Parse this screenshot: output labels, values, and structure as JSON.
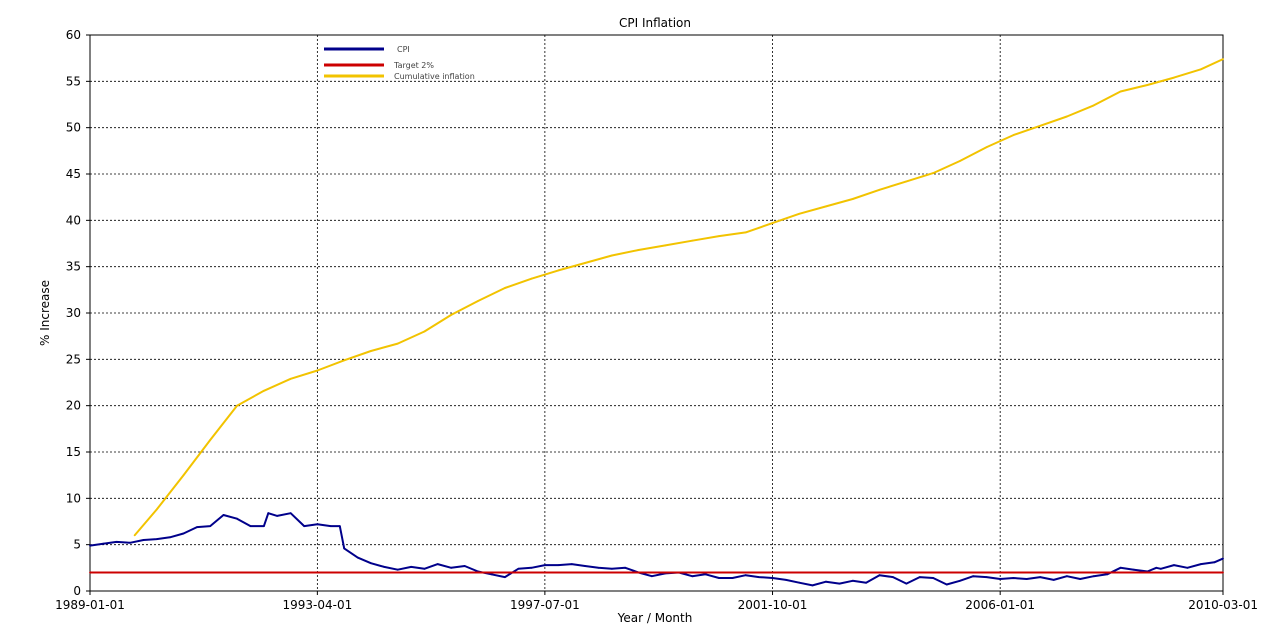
{
  "chart_data": {
    "type": "line",
    "title": "CPI Inflation",
    "xlabel": "Year / Month",
    "ylabel": "% Increase",
    "ylim": [
      0,
      60
    ],
    "yticks": [
      "0",
      "5",
      "10",
      "15",
      "20",
      "25",
      "30",
      "35",
      "40",
      "45",
      "50",
      "55",
      "60"
    ],
    "xticks": [
      "1989-01-01",
      "1993-04-01",
      "1997-07-01",
      "2001-10-01",
      "2006-01-01",
      "2010-03-01"
    ],
    "xlim": [
      "1989-01-01",
      "2010-03-01"
    ],
    "grid": true,
    "legend_position": "top-left",
    "series": [
      {
        "name": "CPI",
        "color": "#00008B",
        "points": [
          [
            "1989-01-01",
            4.9
          ],
          [
            "1989-04-01",
            5.1
          ],
          [
            "1989-07-01",
            5.3
          ],
          [
            "1989-10-01",
            5.2
          ],
          [
            "1990-01-01",
            5.5
          ],
          [
            "1990-04-01",
            5.6
          ],
          [
            "1990-07-01",
            5.8
          ],
          [
            "1990-10-01",
            6.2
          ],
          [
            "1991-01-01",
            6.9
          ],
          [
            "1991-04-01",
            7.0
          ],
          [
            "1991-07-01",
            8.2
          ],
          [
            "1991-10-01",
            7.8
          ],
          [
            "1992-01-01",
            7.0
          ],
          [
            "1992-04-01",
            7.0
          ],
          [
            "1992-05-01",
            8.4
          ],
          [
            "1992-07-01",
            8.1
          ],
          [
            "1992-10-01",
            8.4
          ],
          [
            "1993-01-01",
            7.0
          ],
          [
            "1993-04-01",
            7.2
          ],
          [
            "1993-07-01",
            7.0
          ],
          [
            "1993-09-01",
            7.0
          ],
          [
            "1993-10-01",
            4.6
          ],
          [
            "1994-01-01",
            3.6
          ],
          [
            "1994-04-01",
            3.0
          ],
          [
            "1994-07-01",
            2.6
          ],
          [
            "1994-10-01",
            2.3
          ],
          [
            "1995-01-01",
            2.6
          ],
          [
            "1995-04-01",
            2.4
          ],
          [
            "1995-07-01",
            2.9
          ],
          [
            "1995-10-01",
            2.5
          ],
          [
            "1996-01-01",
            2.7
          ],
          [
            "1996-04-01",
            2.1
          ],
          [
            "1996-07-01",
            1.8
          ],
          [
            "1996-10-01",
            1.5
          ],
          [
            "1997-01-01",
            2.4
          ],
          [
            "1997-04-01",
            2.5
          ],
          [
            "1997-07-01",
            2.8
          ],
          [
            "1997-10-01",
            2.8
          ],
          [
            "1998-01-01",
            2.9
          ],
          [
            "1998-04-01",
            2.7
          ],
          [
            "1998-07-01",
            2.5
          ],
          [
            "1998-10-01",
            2.4
          ],
          [
            "1999-01-01",
            2.5
          ],
          [
            "1999-04-01",
            2.0
          ],
          [
            "1999-07-01",
            1.6
          ],
          [
            "1999-10-01",
            1.9
          ],
          [
            "2000-01-01",
            2.0
          ],
          [
            "2000-04-01",
            1.6
          ],
          [
            "2000-07-01",
            1.8
          ],
          [
            "2000-10-01",
            1.4
          ],
          [
            "2001-01-01",
            1.4
          ],
          [
            "2001-04-01",
            1.7
          ],
          [
            "2001-07-01",
            1.5
          ],
          [
            "2001-10-01",
            1.4
          ],
          [
            "2002-01-01",
            1.2
          ],
          [
            "2002-04-01",
            0.9
          ],
          [
            "2002-07-01",
            0.6
          ],
          [
            "2002-10-01",
            1.0
          ],
          [
            "2003-01-01",
            0.8
          ],
          [
            "2003-04-01",
            1.1
          ],
          [
            "2003-07-01",
            0.9
          ],
          [
            "2003-10-01",
            1.7
          ],
          [
            "2004-01-01",
            1.5
          ],
          [
            "2004-04-01",
            0.8
          ],
          [
            "2004-07-01",
            1.5
          ],
          [
            "2004-10-01",
            1.4
          ],
          [
            "2005-01-01",
            0.7
          ],
          [
            "2005-04-01",
            1.1
          ],
          [
            "2005-07-01",
            1.6
          ],
          [
            "2005-10-01",
            1.5
          ],
          [
            "2006-01-01",
            1.3
          ],
          [
            "2006-04-01",
            1.4
          ],
          [
            "2006-07-01",
            1.3
          ],
          [
            "2006-10-01",
            1.5
          ],
          [
            "2007-01-01",
            1.2
          ],
          [
            "2007-04-01",
            1.6
          ],
          [
            "2007-07-01",
            1.3
          ],
          [
            "2007-10-01",
            1.6
          ],
          [
            "2008-01-01",
            1.8
          ],
          [
            "2008-04-01",
            2.5
          ],
          [
            "2008-07-01",
            2.3
          ],
          [
            "2008-10-01",
            2.1
          ],
          [
            "2008-12-01",
            2.5
          ],
          [
            "2009-01-01",
            2.4
          ],
          [
            "2009-04-01",
            2.8
          ],
          [
            "2009-07-01",
            2.5
          ],
          [
            "2009-10-01",
            2.9
          ],
          [
            "2010-01-01",
            3.1
          ],
          [
            "2010-03-01",
            3.5
          ]
        ]
      },
      {
        "name": "Target 2%",
        "color": "#CC0000",
        "points": [
          [
            "1989-01-01",
            2.0
          ],
          [
            "2010-03-01",
            2.0
          ]
        ]
      },
      {
        "name": "Cumulative inflation",
        "color": "#F2C300",
        "points": [
          [
            "1989-11-01",
            6.0
          ],
          [
            "1990-04-01",
            8.8
          ],
          [
            "1990-10-01",
            12.5
          ],
          [
            "1991-04-01",
            16.3
          ],
          [
            "1991-10-01",
            20.0
          ],
          [
            "1992-04-01",
            21.6
          ],
          [
            "1992-10-01",
            22.9
          ],
          [
            "1993-04-01",
            23.8
          ],
          [
            "1993-10-01",
            24.9
          ],
          [
            "1994-04-01",
            25.9
          ],
          [
            "1994-10-01",
            26.7
          ],
          [
            "1995-04-01",
            28.0
          ],
          [
            "1995-10-01",
            29.8
          ],
          [
            "1996-04-01",
            31.3
          ],
          [
            "1996-10-01",
            32.7
          ],
          [
            "1997-04-01",
            33.7
          ],
          [
            "1997-10-01",
            34.6
          ],
          [
            "1998-04-01",
            35.4
          ],
          [
            "1998-10-01",
            36.2
          ],
          [
            "1999-04-01",
            36.8
          ],
          [
            "1999-10-01",
            37.3
          ],
          [
            "2000-04-01",
            37.8
          ],
          [
            "2000-10-01",
            38.3
          ],
          [
            "2001-04-01",
            38.7
          ],
          [
            "2001-10-01",
            39.7
          ],
          [
            "2002-04-01",
            40.7
          ],
          [
            "2002-10-01",
            41.5
          ],
          [
            "2003-04-01",
            42.3
          ],
          [
            "2003-10-01",
            43.3
          ],
          [
            "2004-04-01",
            44.2
          ],
          [
            "2004-10-01",
            45.1
          ],
          [
            "2005-04-01",
            46.4
          ],
          [
            "2005-10-01",
            47.9
          ],
          [
            "2006-04-01",
            49.2
          ],
          [
            "2006-10-01",
            50.2
          ],
          [
            "2007-04-01",
            51.2
          ],
          [
            "2007-10-01",
            52.4
          ],
          [
            "2008-04-01",
            53.9
          ],
          [
            "2008-10-01",
            54.6
          ],
          [
            "2009-04-01",
            55.4
          ],
          [
            "2009-10-01",
            56.3
          ],
          [
            "2010-03-01",
            57.4
          ]
        ]
      }
    ]
  }
}
